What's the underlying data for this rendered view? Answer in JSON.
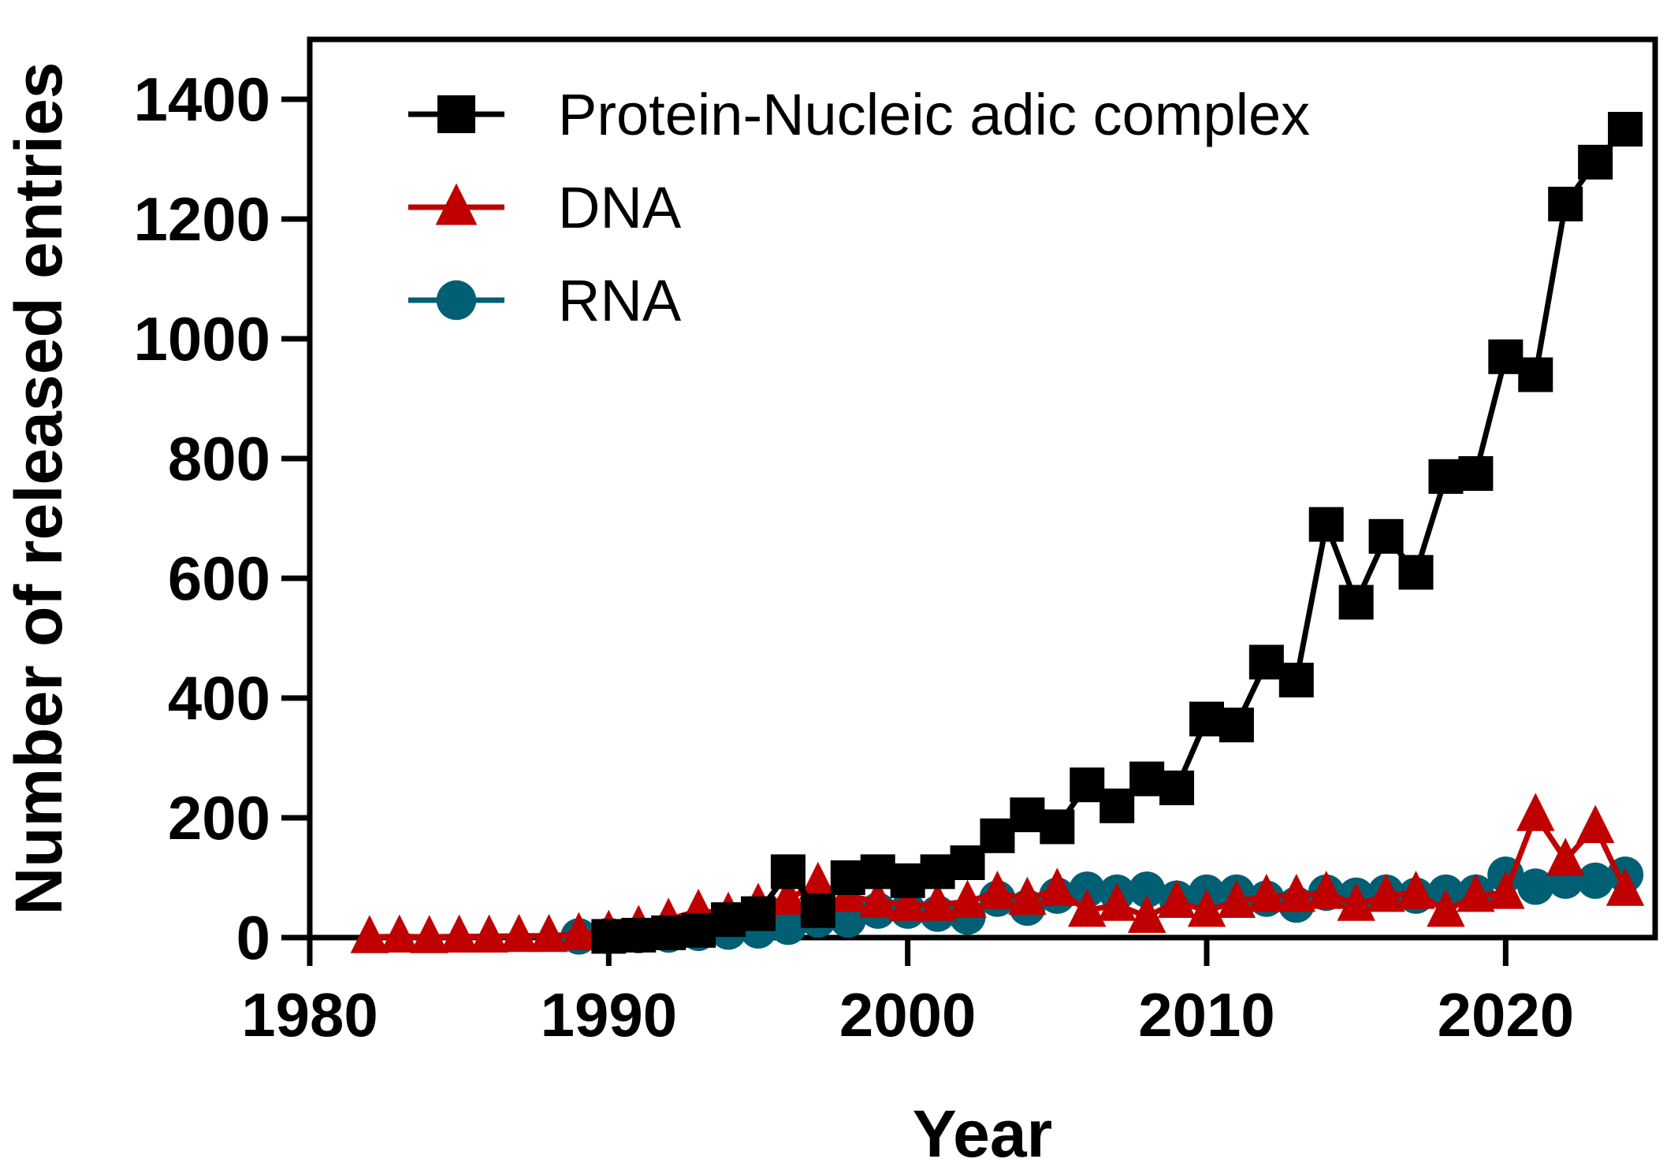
{
  "chart_data": {
    "type": "line",
    "title": "",
    "xlabel": "Year",
    "ylabel": "Number of released entries",
    "xlim": [
      1980,
      2025
    ],
    "ylim": [
      0,
      1500
    ],
    "xticks": [
      1980,
      1990,
      2000,
      2010,
      2020
    ],
    "yticks": [
      0,
      200,
      400,
      600,
      800,
      1000,
      1200,
      1400
    ],
    "grid": false,
    "legend_position": "top-left",
    "series": [
      {
        "name": "Protein-Nucleic adic complex",
        "color": "#000000",
        "marker": "square",
        "x": [
          1990,
          1991,
          1992,
          1993,
          1994,
          1995,
          1996,
          1997,
          1998,
          1999,
          2000,
          2001,
          2002,
          2003,
          2004,
          2005,
          2006,
          2007,
          2008,
          2009,
          2010,
          2011,
          2012,
          2013,
          2014,
          2015,
          2016,
          2017,
          2018,
          2019,
          2020,
          2021,
          2022,
          2023,
          2024
        ],
        "y": [
          2,
          4,
          8,
          12,
          30,
          40,
          110,
          45,
          100,
          110,
          95,
          110,
          125,
          170,
          205,
          185,
          255,
          220,
          265,
          250,
          365,
          355,
          460,
          430,
          690,
          560,
          670,
          610,
          770,
          775,
          970,
          940,
          1225,
          1295,
          1350
        ]
      },
      {
        "name": "DNA",
        "color": "#c00000",
        "marker": "triangle",
        "x": [
          1982,
          1983,
          1984,
          1985,
          1986,
          1987,
          1988,
          1989,
          1990,
          1991,
          1992,
          1993,
          1994,
          1995,
          1996,
          1997,
          1998,
          1999,
          2000,
          2001,
          2002,
          2003,
          2004,
          2005,
          2006,
          2007,
          2008,
          2009,
          2010,
          2011,
          2012,
          2013,
          2014,
          2015,
          2016,
          2017,
          2018,
          2019,
          2020,
          2021,
          2022,
          2023,
          2024
        ],
        "y": [
          1,
          2,
          1,
          2,
          2,
          3,
          3,
          6,
          10,
          18,
          30,
          45,
          40,
          55,
          65,
          90,
          70,
          60,
          55,
          55,
          60,
          75,
          65,
          80,
          45,
          55,
          35,
          60,
          45,
          60,
          70,
          70,
          75,
          55,
          70,
          75,
          45,
          70,
          75,
          205,
          130,
          185,
          80
        ]
      },
      {
        "name": "RNA",
        "color": "#005f73",
        "marker": "circle",
        "x": [
          1989,
          1990,
          1991,
          1992,
          1993,
          1994,
          1995,
          1996,
          1997,
          1998,
          1999,
          2000,
          2001,
          2002,
          2003,
          2004,
          2005,
          2006,
          2007,
          2008,
          2009,
          2010,
          2011,
          2012,
          2013,
          2014,
          2015,
          2016,
          2017,
          2018,
          2019,
          2020,
          2021,
          2022,
          2023,
          2024
        ],
        "y": [
          2,
          3,
          4,
          5,
          8,
          10,
          12,
          18,
          30,
          30,
          45,
          45,
          40,
          35,
          65,
          50,
          70,
          80,
          75,
          80,
          65,
          75,
          75,
          65,
          55,
          75,
          70,
          75,
          70,
          75,
          75,
          105,
          85,
          95,
          95,
          105
        ]
      }
    ]
  }
}
